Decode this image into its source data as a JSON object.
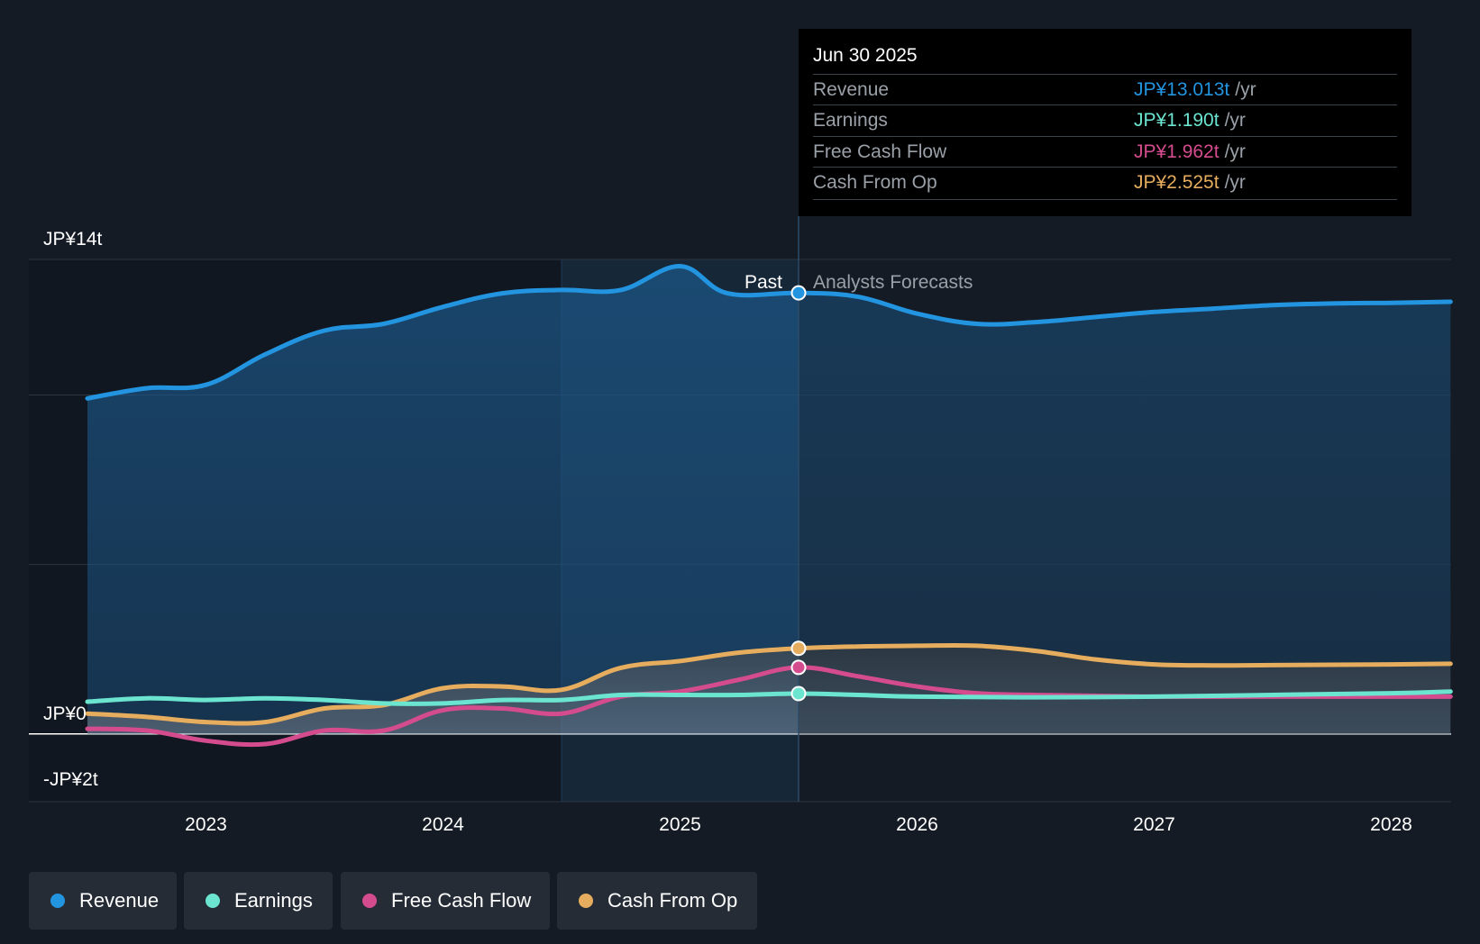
{
  "chart_data": {
    "type": "line",
    "y_axis": {
      "labels": [
        "JP¥14t",
        "JP¥0",
        "-JP¥2t"
      ],
      "ylim": [
        -2,
        14
      ],
      "gridlines": [
        0,
        5,
        10,
        14
      ]
    },
    "x_axis": {
      "tick_labels": [
        "2023",
        "2024",
        "2025",
        "2026",
        "2027",
        "2028"
      ],
      "xlim": [
        2022.5,
        2028.25
      ]
    },
    "divider": {
      "x": 2025.5,
      "past_label": "Past",
      "forecast_label": "Analysts Forecasts",
      "highlight_start": 2024.5
    },
    "series": [
      {
        "name": "Revenue",
        "color": "#2394df",
        "x": [
          2022.5,
          2022.75,
          2023.0,
          2023.25,
          2023.5,
          2023.75,
          2024.0,
          2024.25,
          2024.5,
          2024.75,
          2025.0,
          2025.2,
          2025.5,
          2025.75,
          2026.0,
          2026.25,
          2026.5,
          2026.75,
          2027.0,
          2027.25,
          2027.5,
          2027.75,
          2028.0,
          2028.25
        ],
        "y": [
          9.9,
          10.2,
          10.3,
          11.2,
          11.9,
          12.1,
          12.6,
          13.0,
          13.1,
          13.1,
          13.8,
          13.0,
          13.013,
          12.9,
          12.4,
          12.1,
          12.15,
          12.3,
          12.45,
          12.55,
          12.65,
          12.7,
          12.72,
          12.75
        ]
      },
      {
        "name": "Earnings",
        "color": "#6ce5d0",
        "x": [
          2022.5,
          2022.75,
          2023.0,
          2023.25,
          2023.5,
          2023.75,
          2024.0,
          2024.25,
          2024.5,
          2024.75,
          2025.0,
          2025.25,
          2025.5,
          2025.75,
          2026.0,
          2026.5,
          2027.0,
          2027.5,
          2028.0,
          2028.25
        ],
        "y": [
          0.95,
          1.05,
          1.0,
          1.05,
          1.0,
          0.9,
          0.9,
          1.0,
          1.0,
          1.15,
          1.15,
          1.15,
          1.19,
          1.15,
          1.1,
          1.08,
          1.1,
          1.15,
          1.2,
          1.25
        ]
      },
      {
        "name": "Free Cash Flow",
        "color": "#d44c8e",
        "x": [
          2022.5,
          2022.75,
          2023.0,
          2023.25,
          2023.5,
          2023.75,
          2024.0,
          2024.25,
          2024.5,
          2024.75,
          2025.0,
          2025.25,
          2025.5,
          2025.75,
          2026.0,
          2026.25,
          2026.5,
          2027.0,
          2027.5,
          2028.0,
          2028.25
        ],
        "y": [
          0.15,
          0.1,
          -0.2,
          -0.3,
          0.1,
          0.1,
          0.7,
          0.75,
          0.6,
          1.1,
          1.25,
          1.6,
          1.962,
          1.7,
          1.4,
          1.2,
          1.15,
          1.1,
          1.1,
          1.1,
          1.1
        ]
      },
      {
        "name": "Cash From Op",
        "color": "#e7ad5e",
        "x": [
          2022.5,
          2022.75,
          2023.0,
          2023.25,
          2023.5,
          2023.75,
          2024.0,
          2024.25,
          2024.5,
          2024.75,
          2025.0,
          2025.25,
          2025.5,
          2025.75,
          2026.0,
          2026.25,
          2026.5,
          2026.75,
          2027.0,
          2027.25,
          2027.5,
          2028.0,
          2028.25
        ],
        "y": [
          0.6,
          0.5,
          0.35,
          0.35,
          0.75,
          0.85,
          1.35,
          1.4,
          1.3,
          1.95,
          2.15,
          2.4,
          2.525,
          2.58,
          2.6,
          2.6,
          2.45,
          2.2,
          2.05,
          2.02,
          2.03,
          2.05,
          2.07
        ]
      }
    ]
  },
  "tooltip": {
    "date": "Jun 30 2025",
    "unit": "/yr",
    "rows": [
      {
        "label": "Revenue",
        "value": "JP¥13.013t"
      },
      {
        "label": "Earnings",
        "value": "JP¥1.190t"
      },
      {
        "label": "Free Cash Flow",
        "value": "JP¥1.962t"
      },
      {
        "label": "Cash From Op",
        "value": "JP¥2.525t"
      }
    ]
  },
  "legend": {
    "items": [
      {
        "label": "Revenue",
        "color": "#2394df"
      },
      {
        "label": "Earnings",
        "color": "#6ce5d0"
      },
      {
        "label": "Free Cash Flow",
        "color": "#d44c8e"
      },
      {
        "label": "Cash From Op",
        "color": "#e7ad5e"
      }
    ]
  }
}
